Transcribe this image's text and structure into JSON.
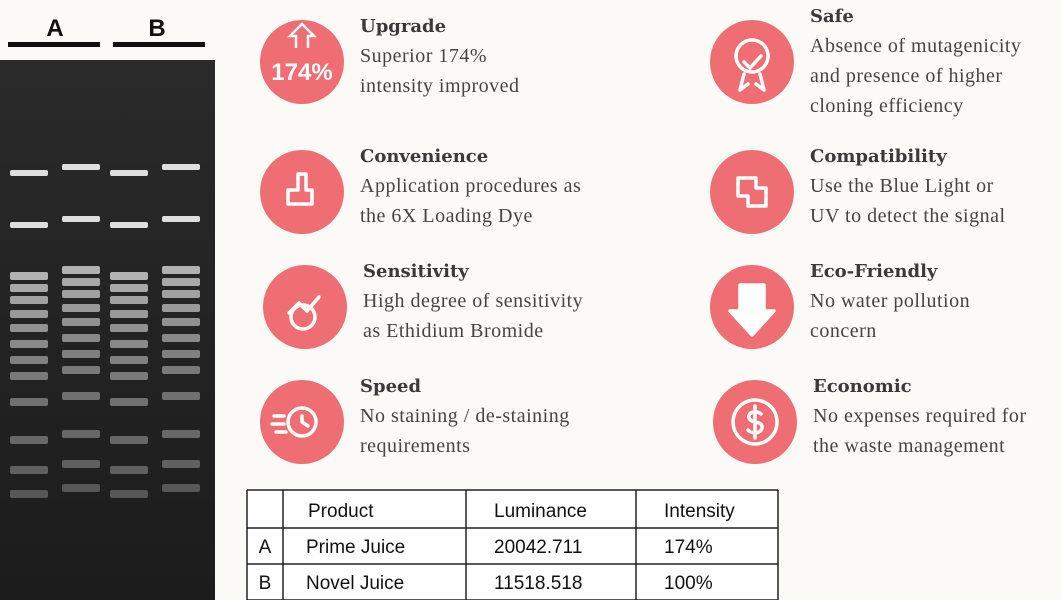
{
  "gel": {
    "lanes": [
      "A",
      "B"
    ]
  },
  "features": [
    {
      "title": "Upgrade",
      "icon_text": "174%",
      "lines": [
        "Superior 174%",
        "intensity improved"
      ]
    },
    {
      "title": "Convenience",
      "lines": [
        "Application procedures as",
        "the 6X Loading Dye"
      ]
    },
    {
      "title": "Sensitivity",
      "lines": [
        "High degree of sensitivity",
        "as Ethidium Bromide"
      ]
    },
    {
      "title": "Speed",
      "lines": [
        "No staining / de-staining",
        "requirements"
      ]
    },
    {
      "title": "Safe",
      "lines": [
        "Absence of mutagenicity",
        "and presence of higher",
        "cloning efficiency"
      ]
    },
    {
      "title": "Compatibility",
      "lines": [
        "Use the Blue Light or",
        "UV to detect the signal"
      ]
    },
    {
      "title": "Eco-Friendly",
      "lines": [
        "No water pollution",
        "concern"
      ]
    },
    {
      "title": "Economic",
      "lines": [
        "No expenses required for",
        "the waste management"
      ]
    }
  ],
  "table": {
    "header": [
      "Product",
      "Luminance",
      "Intensity"
    ],
    "rows": [
      [
        "A",
        "Prime Juice",
        "20042.711",
        "174%"
      ],
      [
        "B",
        "Novel Juice",
        "11518.518",
        "100%"
      ]
    ]
  }
}
